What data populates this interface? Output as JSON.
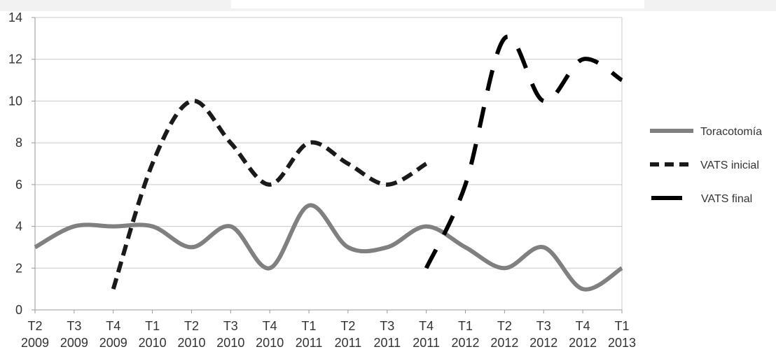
{
  "chart_data": {
    "type": "line",
    "title": "",
    "xlabel": "",
    "ylabel": "",
    "categories": [
      [
        "T2",
        "2009"
      ],
      [
        "T3",
        "2009"
      ],
      [
        "T4",
        "2009"
      ],
      [
        "T1",
        "2010"
      ],
      [
        "T2",
        "2010"
      ],
      [
        "T3",
        "2010"
      ],
      [
        "T4",
        "2010"
      ],
      [
        "T1",
        "2011"
      ],
      [
        "T2",
        "2011"
      ],
      [
        "T3",
        "2011"
      ],
      [
        "T4",
        "2011"
      ],
      [
        "T1",
        "2012"
      ],
      [
        "T2",
        "2012"
      ],
      [
        "T3",
        "2012"
      ],
      [
        "T4",
        "2012"
      ],
      [
        "T1",
        "2013"
      ]
    ],
    "ylim": [
      0,
      14
    ],
    "yticks": [
      0,
      2,
      4,
      6,
      8,
      10,
      12,
      14
    ],
    "grid": true,
    "legend_position": "right",
    "series": [
      {
        "name": "Toracotomía",
        "style": "solid",
        "color": "#808080",
        "values": [
          3,
          4,
          4,
          4,
          3,
          4,
          2,
          5,
          3,
          3,
          4,
          3,
          2,
          3,
          1,
          2
        ]
      },
      {
        "name": "VATS inicial",
        "style": "dashed",
        "color": "#1a1a1a",
        "values": [
          null,
          null,
          1,
          7,
          10,
          8,
          6,
          8,
          7,
          6,
          7,
          null,
          null,
          null,
          null,
          null
        ]
      },
      {
        "name": "VATS final",
        "style": "long-dashed",
        "color": "#000000",
        "values": [
          null,
          null,
          null,
          null,
          null,
          null,
          null,
          null,
          null,
          null,
          2,
          6,
          13,
          10,
          12,
          11
        ]
      }
    ]
  },
  "colors": {
    "grid": "#c8c8c8",
    "axis": "#999999",
    "text": "#333333"
  }
}
